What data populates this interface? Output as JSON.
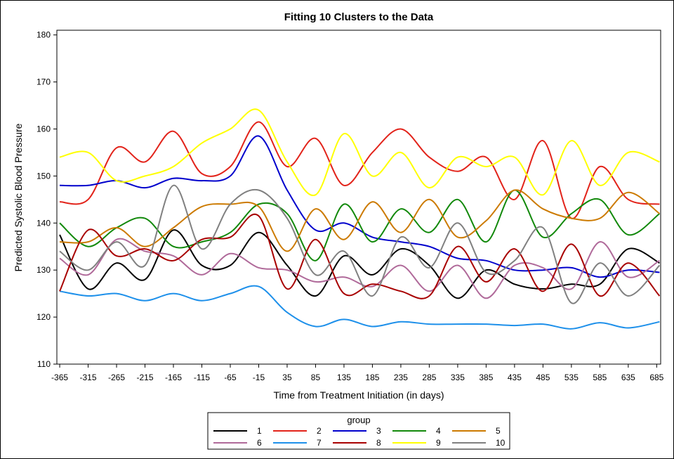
{
  "chart_data": {
    "type": "line",
    "title": "Fitting 10 Clusters to the Data",
    "xlabel": "Time from Treatment Initiation (in days)",
    "ylabel": "Predicted Systolic Blood Pressure",
    "xlim": [
      -370,
      692
    ],
    "ylim": [
      110,
      181
    ],
    "x_ticks": [
      -365,
      -315,
      -265,
      -215,
      -165,
      -115,
      -65,
      -15,
      35,
      85,
      135,
      185,
      235,
      285,
      335,
      385,
      435,
      485,
      535,
      585,
      635,
      685
    ],
    "y_ticks": [
      110,
      120,
      130,
      140,
      150,
      160,
      170,
      180
    ],
    "grid": false,
    "legend": {
      "title": "group",
      "placement": "bottom"
    },
    "x": [
      -365,
      -315,
      -265,
      -215,
      -165,
      -115,
      -65,
      -15,
      35,
      85,
      135,
      185,
      235,
      285,
      335,
      385,
      435,
      485,
      535,
      585,
      635,
      690
    ],
    "series": [
      {
        "name": "1",
        "color": "#000000",
        "values": [
          137.5,
          126,
          131.5,
          128,
          138.5,
          131,
          131,
          138,
          131,
          124.5,
          133,
          129,
          134.5,
          131,
          124,
          130,
          127,
          126,
          127,
          127,
          134.5,
          131.5
        ]
      },
      {
        "name": "2",
        "color": "#e2231a",
        "values": [
          144.5,
          145,
          156,
          153,
          159.5,
          150.5,
          152,
          161.5,
          152,
          158,
          148,
          155,
          160,
          154,
          151,
          154,
          145,
          157.5,
          141,
          152,
          145,
          144
        ]
      },
      {
        "name": "3",
        "color": "#0000cc",
        "values": [
          148,
          148,
          149,
          147.5,
          149.5,
          149,
          150,
          158.5,
          147,
          138.5,
          140,
          137,
          136,
          135,
          132.5,
          132,
          130,
          130,
          130.5,
          128.5,
          130,
          129.5
        ]
      },
      {
        "name": "4",
        "color": "#12890b",
        "values": [
          140,
          135,
          139,
          141,
          135,
          136,
          138,
          144,
          142,
          132,
          144,
          136,
          143,
          138,
          145,
          136,
          147,
          137,
          142,
          145,
          137.5,
          142
        ]
      },
      {
        "name": "5",
        "color": "#cc7a00",
        "values": [
          136,
          136,
          139,
          135,
          139,
          143.5,
          144,
          143.5,
          134,
          143,
          136.5,
          144.5,
          138,
          145,
          137,
          140.5,
          147,
          143,
          141,
          141,
          146.5,
          142
        ]
      },
      {
        "name": "6",
        "color": "#b06a9a",
        "values": [
          132.5,
          129,
          136.5,
          134,
          133,
          129,
          133.5,
          130.5,
          130,
          127.5,
          128.5,
          126.5,
          131,
          125.5,
          131,
          124,
          131,
          130.5,
          126,
          136,
          128.5,
          132
        ]
      },
      {
        "name": "7",
        "color": "#1e90ea",
        "values": [
          125.5,
          124.5,
          125,
          123.5,
          125,
          123.5,
          125,
          126.5,
          121,
          118,
          119.5,
          118,
          119,
          118.5,
          118.5,
          118.5,
          118.2,
          118.5,
          117.5,
          118.8,
          117.7,
          119
        ]
      },
      {
        "name": "8",
        "color": "#a80000",
        "values": [
          125.5,
          138.5,
          133,
          134.5,
          132,
          136.5,
          137,
          141.5,
          126,
          136.5,
          125,
          127,
          125.5,
          124.5,
          135,
          127.5,
          134.5,
          125.5,
          135.5,
          124.5,
          131.5,
          124.5
        ]
      },
      {
        "name": "9",
        "color": "#ffff00",
        "values": [
          154,
          155,
          149,
          150,
          152,
          157,
          160,
          164,
          153,
          146,
          159,
          150,
          155,
          147.5,
          154,
          152,
          154,
          146,
          157.5,
          148,
          155,
          153
        ]
      },
      {
        "name": "10",
        "color": "#808080",
        "values": [
          134,
          130,
          136,
          131,
          148,
          134.5,
          144,
          147,
          141,
          129,
          134,
          124.5,
          137,
          130.5,
          140,
          129.5,
          132,
          139,
          123,
          131.5,
          124.5,
          131
        ]
      }
    ]
  }
}
